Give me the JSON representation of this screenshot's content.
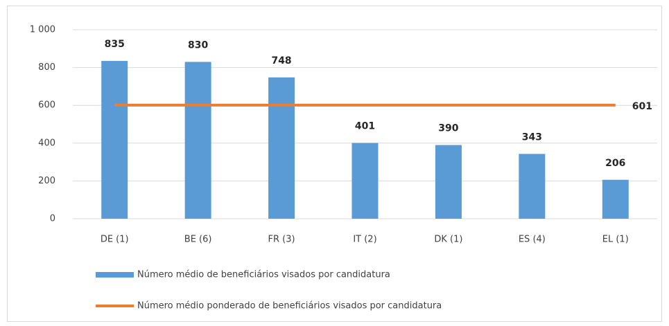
{
  "chart_data": {
    "type": "bar",
    "categories": [
      "DE (1)",
      "BE (6)",
      "FR (3)",
      "IT (2)",
      "DK (1)",
      "ES (4)",
      "EL (1)"
    ],
    "series": [
      {
        "name": "Número médio de beneficiários visados por candidatura",
        "type": "bar",
        "color": "#5b9bd5",
        "values": [
          835,
          830,
          748,
          401,
          390,
          343,
          206
        ]
      },
      {
        "name": "Número médio ponderado de beneficiários visados por candidatura",
        "type": "line",
        "color": "#ed7d31",
        "values": [
          601,
          601,
          601,
          601,
          601,
          601,
          601
        ]
      }
    ],
    "ylim": [
      0,
      1000
    ],
    "yticks": [
      0,
      200,
      400,
      600,
      800,
      {
        "value": 1000,
        "label": "1 000"
      }
    ],
    "grid": true,
    "legend": "bottom"
  }
}
